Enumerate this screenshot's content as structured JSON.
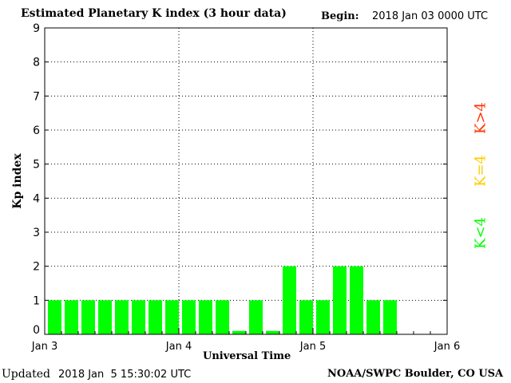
{
  "header": {
    "title": "Estimated Planetary K index (3 hour data)",
    "begin_label": "Begin:",
    "begin_value": "2018 Jan 03 0000 UTC"
  },
  "footer": {
    "updated_label": "Updated",
    "updated_value": "2018 Jan  5 15:30:02 UTC",
    "source": "NOAA/SWPC Boulder, CO USA"
  },
  "legend": {
    "high": "K>4",
    "equal": "K=4",
    "low": "K<4"
  },
  "colors": {
    "low": "#00ff00",
    "equal": "#ffcc00",
    "high": "#ff3300",
    "axis": "#000000",
    "grid": "#000000"
  },
  "chart_data": {
    "type": "bar",
    "title": "Estimated Planetary K index (3 hour data)",
    "xlabel": "Universal Time",
    "ylabel": "Kp index",
    "ylim": [
      0,
      9
    ],
    "yticks": [
      "0",
      "1",
      "2",
      "3",
      "4",
      "5",
      "6",
      "7",
      "8",
      "9"
    ],
    "xticks": [
      "Jan 3",
      "Jan 4",
      "Jan 5",
      "Jan 6"
    ],
    "grid": true,
    "bin_hours": 3,
    "values": [
      1,
      1,
      1,
      1,
      1,
      1,
      1,
      1,
      1,
      1,
      1,
      0.1,
      1,
      0.1,
      2,
      1,
      1,
      2,
      2,
      1,
      1
    ]
  }
}
